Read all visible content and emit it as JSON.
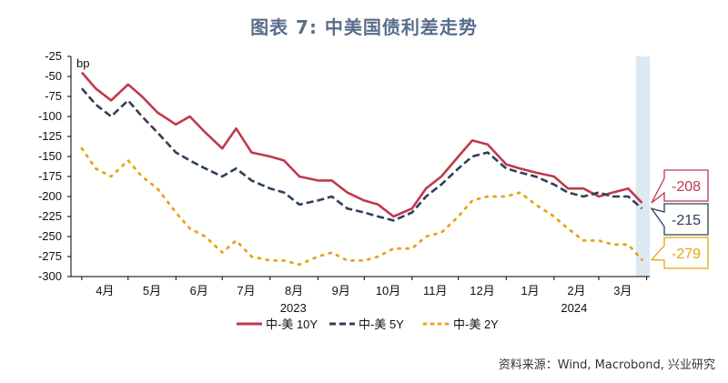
{
  "title": "图表 7:   中美国债利差走势",
  "source": "资料来源：Wind, Macrobond, 兴业研究",
  "chart_data": {
    "type": "line",
    "title": "图表 7:   中美国债利差走势",
    "unit": "bp",
    "ylim": [
      -300,
      -25
    ],
    "yticks": [
      -25,
      -50,
      -75,
      -100,
      -125,
      -150,
      -175,
      -200,
      -225,
      -250,
      -275,
      -300
    ],
    "x_months": [
      "4月",
      "5月",
      "6月",
      "7月",
      "8月",
      "9月",
      "10月",
      "11月",
      "12月",
      "1月",
      "2月",
      "3月"
    ],
    "x_years": [
      "2023",
      "2024"
    ],
    "legend_position": "bottom",
    "grid": false,
    "highlight_band": "last-week",
    "series": [
      {
        "name": "中-美 10Y",
        "color": "#c0394b",
        "dash": "solid",
        "x": [
          "2023-04-01",
          "2023-04-10",
          "2023-04-20",
          "2023-05-01",
          "2023-05-10",
          "2023-05-20",
          "2023-06-01",
          "2023-06-10",
          "2023-06-20",
          "2023-07-01",
          "2023-07-10",
          "2023-07-20",
          "2023-08-01",
          "2023-08-10",
          "2023-08-20",
          "2023-09-01",
          "2023-09-10",
          "2023-09-20",
          "2023-10-01",
          "2023-10-10",
          "2023-10-20",
          "2023-11-01",
          "2023-11-10",
          "2023-11-20",
          "2023-12-01",
          "2023-12-10",
          "2023-12-20",
          "2024-01-01",
          "2024-01-10",
          "2024-01-20",
          "2024-02-01",
          "2024-02-10",
          "2024-02-20",
          "2024-03-01",
          "2024-03-10",
          "2024-03-20",
          "2024-03-29"
        ],
        "values": [
          -45,
          -65,
          -80,
          -60,
          -75,
          -95,
          -110,
          -100,
          -120,
          -140,
          -115,
          -145,
          -150,
          -155,
          -175,
          -180,
          -180,
          -195,
          -205,
          -210,
          -225,
          -215,
          -190,
          -175,
          -150,
          -130,
          -135,
          -160,
          -165,
          -170,
          -175,
          -190,
          -190,
          -200,
          -195,
          -190,
          -208
        ]
      },
      {
        "name": "中-美 5Y",
        "color": "#2d4159",
        "dash": "dashed",
        "x": [
          "2023-04-01",
          "2023-04-10",
          "2023-04-20",
          "2023-05-01",
          "2023-05-10",
          "2023-05-20",
          "2023-06-01",
          "2023-06-10",
          "2023-06-20",
          "2023-07-01",
          "2023-07-10",
          "2023-07-20",
          "2023-08-01",
          "2023-08-10",
          "2023-08-20",
          "2023-09-01",
          "2023-09-10",
          "2023-09-20",
          "2023-10-01",
          "2023-10-10",
          "2023-10-20",
          "2023-11-01",
          "2023-11-10",
          "2023-11-20",
          "2023-12-01",
          "2023-12-10",
          "2023-12-20",
          "2024-01-01",
          "2024-01-10",
          "2024-01-20",
          "2024-02-01",
          "2024-02-10",
          "2024-02-20",
          "2024-03-01",
          "2024-03-10",
          "2024-03-20",
          "2024-03-29"
        ],
        "values": [
          -65,
          -85,
          -100,
          -80,
          -100,
          -120,
          -145,
          -155,
          -165,
          -175,
          -165,
          -180,
          -190,
          -195,
          -210,
          -205,
          -200,
          -215,
          -220,
          -225,
          -230,
          -220,
          -200,
          -185,
          -165,
          -150,
          -145,
          -165,
          -170,
          -175,
          -185,
          -195,
          -200,
          -195,
          -200,
          -200,
          -215
        ]
      },
      {
        "name": "中-美 2Y",
        "color": "#e8a317",
        "dash": "dotted",
        "x": [
          "2023-04-01",
          "2023-04-10",
          "2023-04-20",
          "2023-05-01",
          "2023-05-10",
          "2023-05-20",
          "2023-06-01",
          "2023-06-10",
          "2023-06-20",
          "2023-07-01",
          "2023-07-10",
          "2023-07-20",
          "2023-08-01",
          "2023-08-10",
          "2023-08-20",
          "2023-09-01",
          "2023-09-10",
          "2023-09-20",
          "2023-10-01",
          "2023-10-10",
          "2023-10-20",
          "2023-11-01",
          "2023-11-10",
          "2023-11-20",
          "2023-12-01",
          "2023-12-10",
          "2023-12-20",
          "2024-01-01",
          "2024-01-10",
          "2024-01-20",
          "2024-02-01",
          "2024-02-10",
          "2024-02-20",
          "2024-03-01",
          "2024-03-10",
          "2024-03-20",
          "2024-03-29"
        ],
        "values": [
          -140,
          -165,
          -175,
          -155,
          -175,
          -190,
          -220,
          -240,
          -250,
          -270,
          -255,
          -275,
          -280,
          -280,
          -285,
          -275,
          -270,
          -280,
          -280,
          -275,
          -265,
          -265,
          -250,
          -245,
          -225,
          -205,
          -200,
          -200,
          -195,
          -210,
          -225,
          -240,
          -255,
          -255,
          -260,
          -260,
          -279
        ]
      }
    ],
    "end_labels": [
      "-208",
      "-215",
      "-279"
    ]
  }
}
